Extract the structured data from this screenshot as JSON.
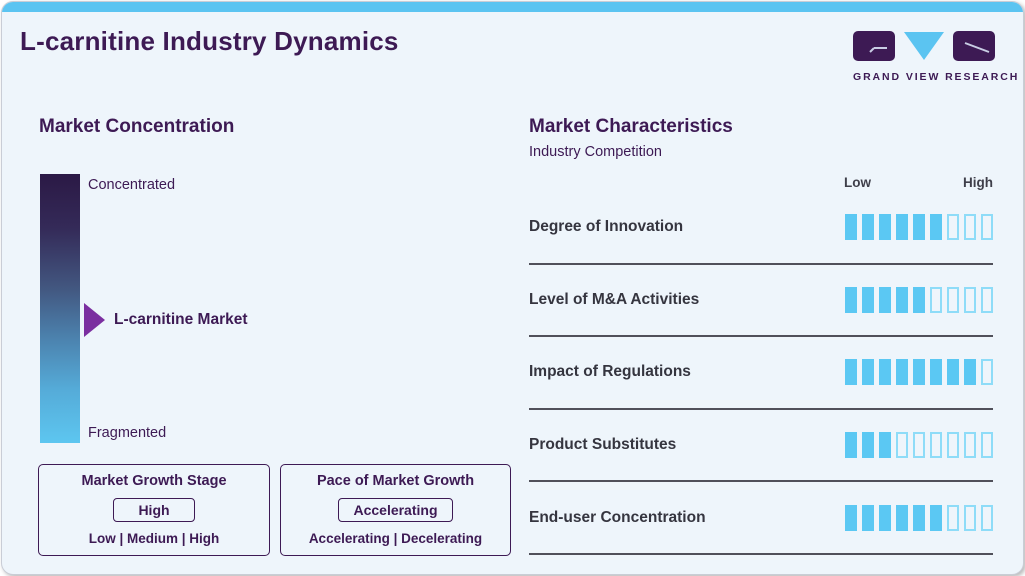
{
  "header": {
    "title": "L-carnitine Industry Dynamics",
    "logo_text": "GRAND VIEW RESEARCH"
  },
  "colors": {
    "accent_blue": "#5bc4f1",
    "heading_purple": "#3d1a54",
    "arrow_purple": "#7b2fa0",
    "bar_fill": "#5bc8f3",
    "bar_outline": "#8edcf8",
    "gradient_top": "#2b1945",
    "gradient_bottom": "#5dc6f0",
    "row_label_gray": "#35353f"
  },
  "market_concentration": {
    "heading": "Market Concentration",
    "scale_top_label": "Concentrated",
    "scale_bottom_label": "Fragmented",
    "marker_label": "L-carnitine Market",
    "boxes": [
      {
        "title": "Market Growth Stage",
        "value": "High",
        "options": "Low | Medium | High"
      },
      {
        "title": "Pace of Market Growth",
        "value": "Accelerating",
        "options": "Accelerating | Decelerating"
      }
    ]
  },
  "market_characteristics": {
    "heading": "Market Characteristics",
    "subheading": "Industry Competition",
    "scale_low": "Low",
    "scale_high": "High",
    "rows": [
      {
        "label": "Degree of Innovation",
        "filled": 6,
        "total": 9
      },
      {
        "label": "Level of M&A Activities",
        "filled": 5,
        "total": 9
      },
      {
        "label": "Impact of Regulations",
        "filled": 8,
        "total": 9
      },
      {
        "label": "Product Substitutes",
        "filled": 3,
        "total": 9
      },
      {
        "label": "End-user Concentration",
        "filled": 6,
        "total": 9
      }
    ]
  },
  "chart_data": {
    "type": "bar",
    "title": "Industry Competition",
    "categories": [
      "Degree of Innovation",
      "Level of M&A Activities",
      "Impact of Regulations",
      "Product Substitutes",
      "End-user Concentration"
    ],
    "values": [
      6,
      5,
      8,
      3,
      6
    ],
    "value_scale": {
      "min": 0,
      "max": 9,
      "low_label": "Low",
      "high_label": "High"
    },
    "legend": "off",
    "grid": "off"
  }
}
